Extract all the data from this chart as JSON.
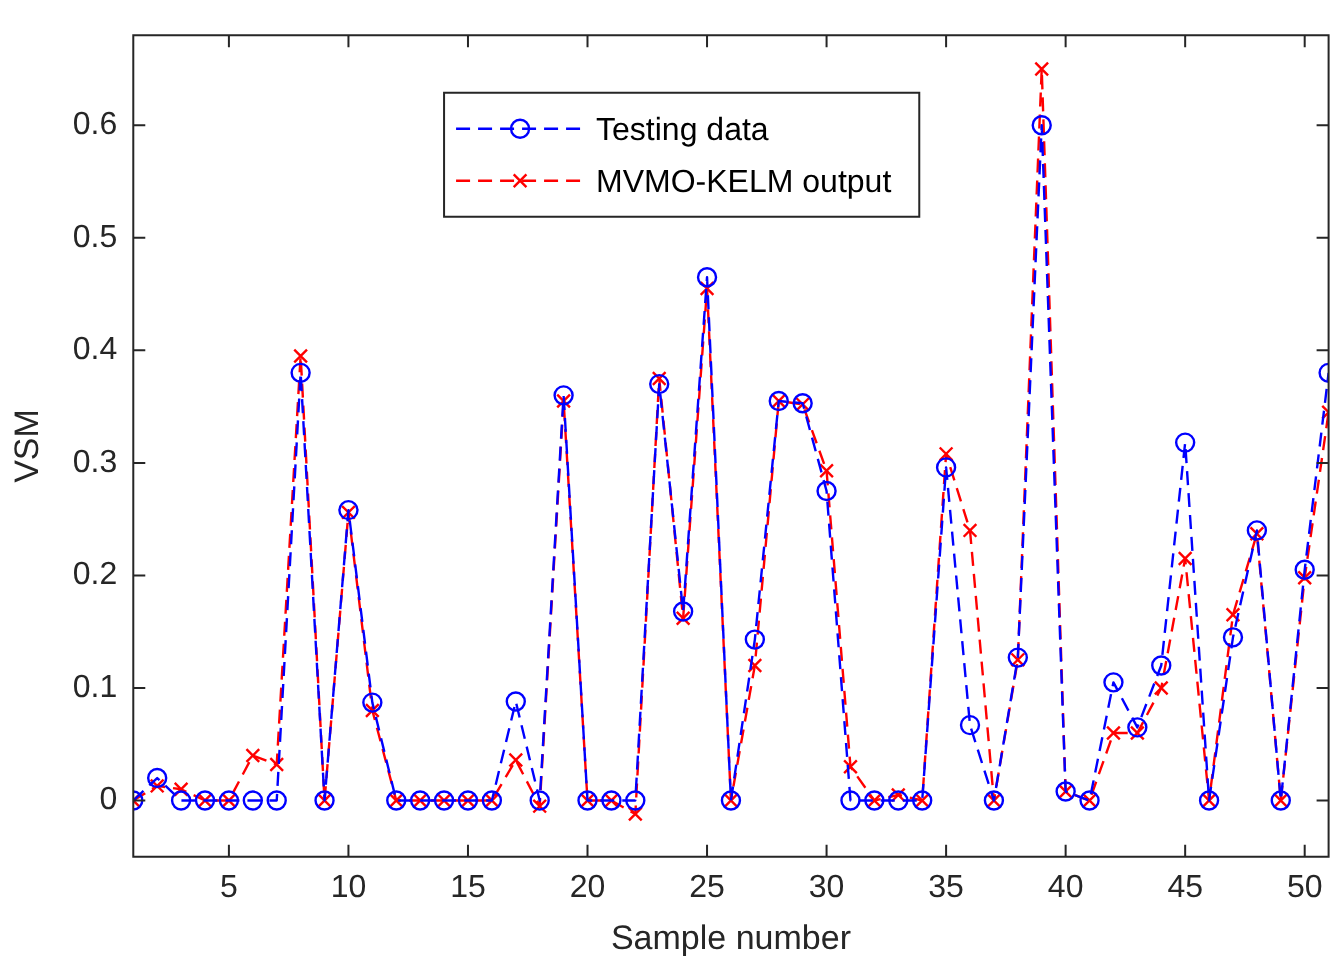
{
  "chart_data": {
    "type": "line",
    "xlabel": "Sample number",
    "ylabel": "VSM",
    "x": [
      1,
      2,
      3,
      4,
      5,
      6,
      7,
      8,
      9,
      10,
      11,
      12,
      13,
      14,
      15,
      16,
      17,
      18,
      19,
      20,
      21,
      22,
      23,
      24,
      25,
      26,
      27,
      28,
      29,
      30,
      31,
      32,
      33,
      34,
      35,
      36,
      37,
      38,
      39,
      40,
      41,
      42,
      43,
      44,
      45,
      46,
      47,
      48,
      49,
      50,
      51
    ],
    "series": [
      {
        "name": "Testing data",
        "color": "#0000ff",
        "marker": "circle",
        "line_style": "dashed",
        "values": [
          0,
          0.02,
          0,
          0,
          0,
          0,
          0,
          0.38,
          0,
          0.258,
          0.087,
          0,
          0,
          0,
          0,
          0,
          0.088,
          0,
          0.36,
          0,
          0,
          0,
          0.37,
          0.168,
          0.465,
          0,
          0.143,
          0.355,
          0.353,
          0.275,
          0,
          0,
          0,
          0,
          0.296,
          0.067,
          0,
          0.127,
          0.6,
          0.008,
          0,
          0.105,
          0.065,
          0.12,
          0.318,
          0,
          0.145,
          0.24,
          0,
          0.205,
          0.38
        ]
      },
      {
        "name": "MVMO-KELM output",
        "color": "#ff0000",
        "marker": "cross",
        "line_style": "dashed",
        "values": [
          0,
          0.013,
          0.01,
          0,
          0,
          0.04,
          0.032,
          0.395,
          0,
          0.256,
          0.08,
          0,
          0,
          0,
          0,
          0,
          0.036,
          -0.005,
          0.355,
          0,
          0,
          -0.012,
          0.375,
          0.162,
          0.455,
          0,
          0.12,
          0.355,
          0.352,
          0.293,
          0.03,
          0,
          0.005,
          0,
          0.308,
          0.24,
          0,
          0.125,
          0.65,
          0.008,
          0,
          0.06,
          0.06,
          0.1,
          0.215,
          0,
          0.165,
          0.237,
          0,
          0.198,
          0.345
        ]
      }
    ],
    "xlim": [
      1,
      51
    ],
    "xticks": [
      5,
      10,
      15,
      20,
      25,
      30,
      35,
      40,
      45,
      50
    ],
    "ylim": [
      -0.05,
      0.68
    ],
    "yticks": [
      0,
      0.1,
      0.2,
      0.3,
      0.4,
      0.5,
      0.6
    ],
    "grid": false,
    "legend": "top"
  }
}
